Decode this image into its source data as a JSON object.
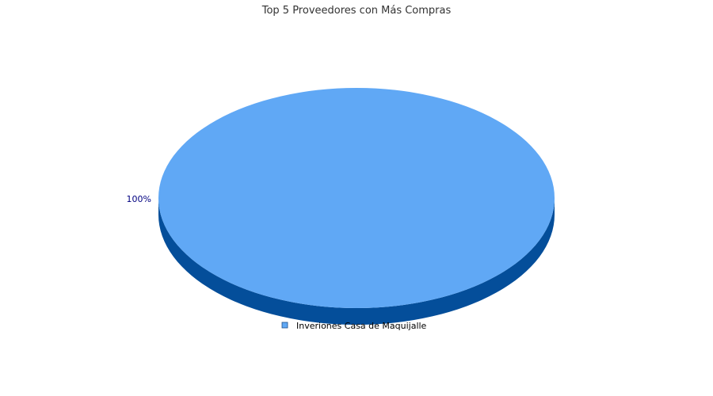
{
  "chart_data": {
    "type": "pie",
    "title": "Top 5 Proveedores con Más Compras",
    "slices": [
      {
        "label": "Inveriones Casa de Maquijalle",
        "value": 100,
        "percent_label": "100%",
        "color": "#60A8F5",
        "shadow_color": "#044E9A"
      }
    ],
    "legend_position": "bottom",
    "three_d": true
  }
}
